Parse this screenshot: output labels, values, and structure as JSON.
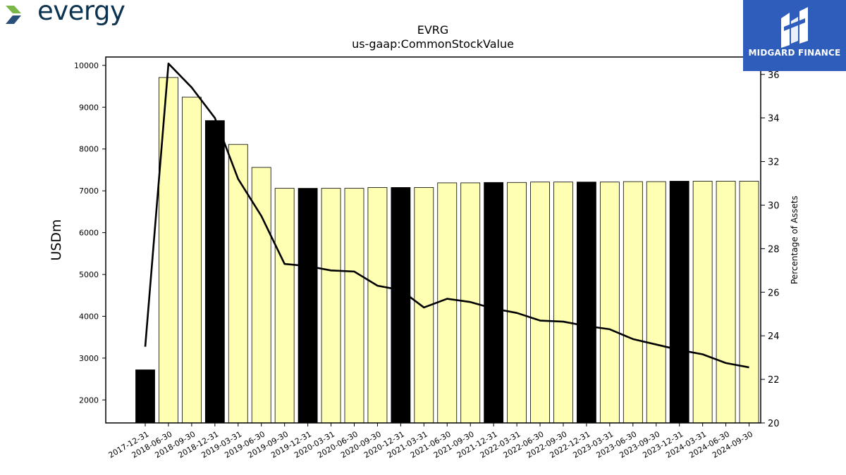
{
  "brand": {
    "company_name": "evergy",
    "company_colors": {
      "text": "#0b3350",
      "chevron_green": "#7ab648",
      "chevron_blue": "#2a4f78"
    },
    "watermark_name": "MIDGARD FINANCE",
    "watermark_bg": "#2f5dbb"
  },
  "chart_data": {
    "type": "bar",
    "title": "EVRG",
    "subtitle": "us-gaap:CommonStockValue",
    "ylabel": "USDm",
    "y2label": "Percentage of Assets",
    "ylim": [
      1450,
      10200
    ],
    "y2lim": [
      20,
      36.8
    ],
    "yticks": [
      2000,
      3000,
      4000,
      5000,
      6000,
      7000,
      8000,
      9000,
      10000
    ],
    "y2ticks": [
      20,
      22,
      24,
      26,
      28,
      30,
      32,
      34,
      36
    ],
    "grid": false,
    "categories": [
      "2017-12-31",
      "2018-06-30",
      "2018-09-30",
      "2018-12-31",
      "2019-03-31",
      "2019-06-30",
      "2019-09-30",
      "2019-12-31",
      "2020-03-31",
      "2020-06-30",
      "2020-09-30",
      "2020-12-31",
      "2021-03-31",
      "2021-06-30",
      "2021-09-30",
      "2021-12-31",
      "2022-03-31",
      "2022-06-30",
      "2022-09-30",
      "2022-12-31",
      "2023-03-31",
      "2023-06-30",
      "2023-09-30",
      "2023-12-31",
      "2024-03-31",
      "2024-06-30",
      "2024-09-30"
    ],
    "values": [
      2720,
      9710,
      9240,
      8680,
      8110,
      7560,
      7060,
      7060,
      7060,
      7060,
      7080,
      7080,
      7080,
      7190,
      7190,
      7200,
      7200,
      7210,
      7210,
      7210,
      7210,
      7220,
      7220,
      7230,
      7230,
      7230,
      7230
    ],
    "year_end": [
      true,
      false,
      false,
      true,
      false,
      false,
      false,
      true,
      false,
      false,
      false,
      true,
      false,
      false,
      false,
      true,
      false,
      false,
      false,
      true,
      false,
      false,
      false,
      true,
      false,
      false,
      false
    ],
    "line_values": [
      23.5,
      36.5,
      35.4,
      34.0,
      31.2,
      29.5,
      27.3,
      27.2,
      27.0,
      26.95,
      26.3,
      26.1,
      25.3,
      25.7,
      25.55,
      25.25,
      25.05,
      24.7,
      24.65,
      24.45,
      24.3,
      23.85,
      23.6,
      23.35,
      23.15,
      22.75,
      22.55
    ],
    "colors": {
      "bar_year_end": "#000000",
      "bar_other": "#ffffb3",
      "bar_edge": "#000000",
      "line": "#000000"
    }
  }
}
